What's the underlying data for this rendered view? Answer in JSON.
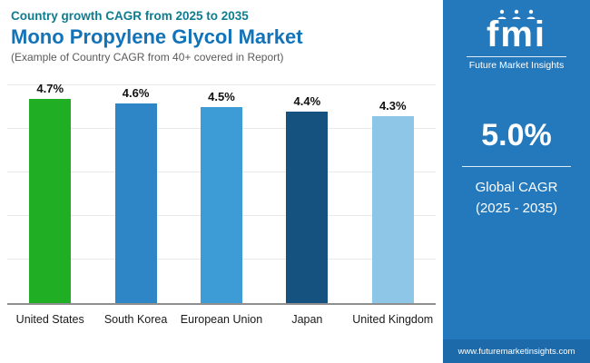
{
  "header": {
    "eyebrow": "Country growth CAGR from 2025 to 2035",
    "title": "Mono Propylene Glycol Market",
    "subtitle": "(Example of Country CAGR from 40+ covered in Report)"
  },
  "sidebar": {
    "logo_text": "fmi",
    "logo_subtitle": "Future Market Insights",
    "big_stat": "5.0%",
    "stat_label_line1": "Global CAGR",
    "stat_label_line2": "(2025 - 2035)",
    "website": "www.futuremarketinsights.com",
    "panel_color": "#2478bc"
  },
  "chart_data": {
    "type": "bar",
    "title": "Mono Propylene Glycol Market — Country growth CAGR from 2025 to 2035",
    "categories": [
      "United States",
      "South Korea",
      "European Union",
      "Japan",
      "United Kingdom"
    ],
    "values": [
      4.7,
      4.6,
      4.5,
      4.4,
      4.3
    ],
    "value_labels": [
      "4.7%",
      "4.6%",
      "4.5%",
      "4.4%",
      "4.3%"
    ],
    "colors": [
      "#1fae24",
      "#2e86c6",
      "#3d9bd5",
      "#16527f",
      "#8ec6e8"
    ],
    "xlabel": "",
    "ylabel": "",
    "ylim": [
      0,
      5
    ],
    "grid": true,
    "legend": false
  }
}
